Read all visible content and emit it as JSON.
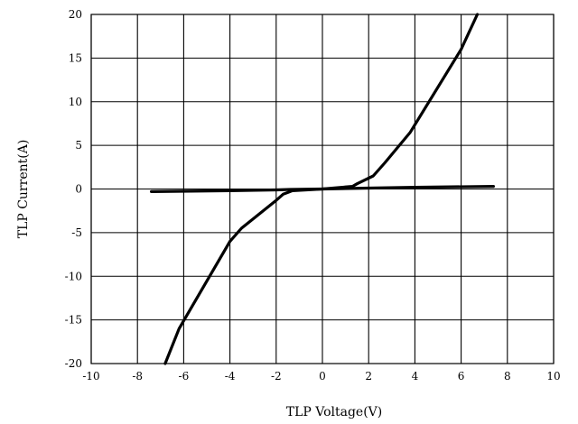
{
  "chart_data": {
    "type": "line",
    "xlabel": "TLP Voltage(V)",
    "ylabel": "TLP Current(A)",
    "xlim": [
      -10,
      10
    ],
    "ylim": [
      -20,
      20
    ],
    "x_ticks": [
      "-10",
      "-8",
      "-6",
      "-4",
      "-2",
      "0",
      "2",
      "4",
      "6",
      "8",
      "10"
    ],
    "y_ticks": [
      "20",
      "15",
      "10",
      "5",
      "0",
      "-5",
      "-10",
      "-15",
      "-20"
    ],
    "grid": true,
    "legend": "none",
    "series": [
      {
        "x": [
          -7.4,
          -4.0,
          -2.0,
          -1.4,
          0.0,
          2.0,
          4.0,
          7.4
        ],
        "y": [
          -0.3,
          -0.2,
          -0.1,
          -0.05,
          0.0,
          0.1,
          0.2,
          0.3
        ]
      },
      {
        "x": [
          -6.8,
          -6.2,
          -4.0,
          -3.5,
          -2.0,
          -1.7,
          -1.5,
          -1.3,
          0.0,
          1.3,
          1.5,
          2.2,
          2.7,
          3.8,
          6.0,
          6.7
        ],
        "y": [
          -20.0,
          -16.0,
          -6.0,
          -4.5,
          -1.3,
          -0.6,
          -0.4,
          -0.2,
          0.0,
          0.3,
          0.6,
          1.5,
          3.0,
          6.5,
          16.0,
          20.0
        ]
      }
    ]
  }
}
